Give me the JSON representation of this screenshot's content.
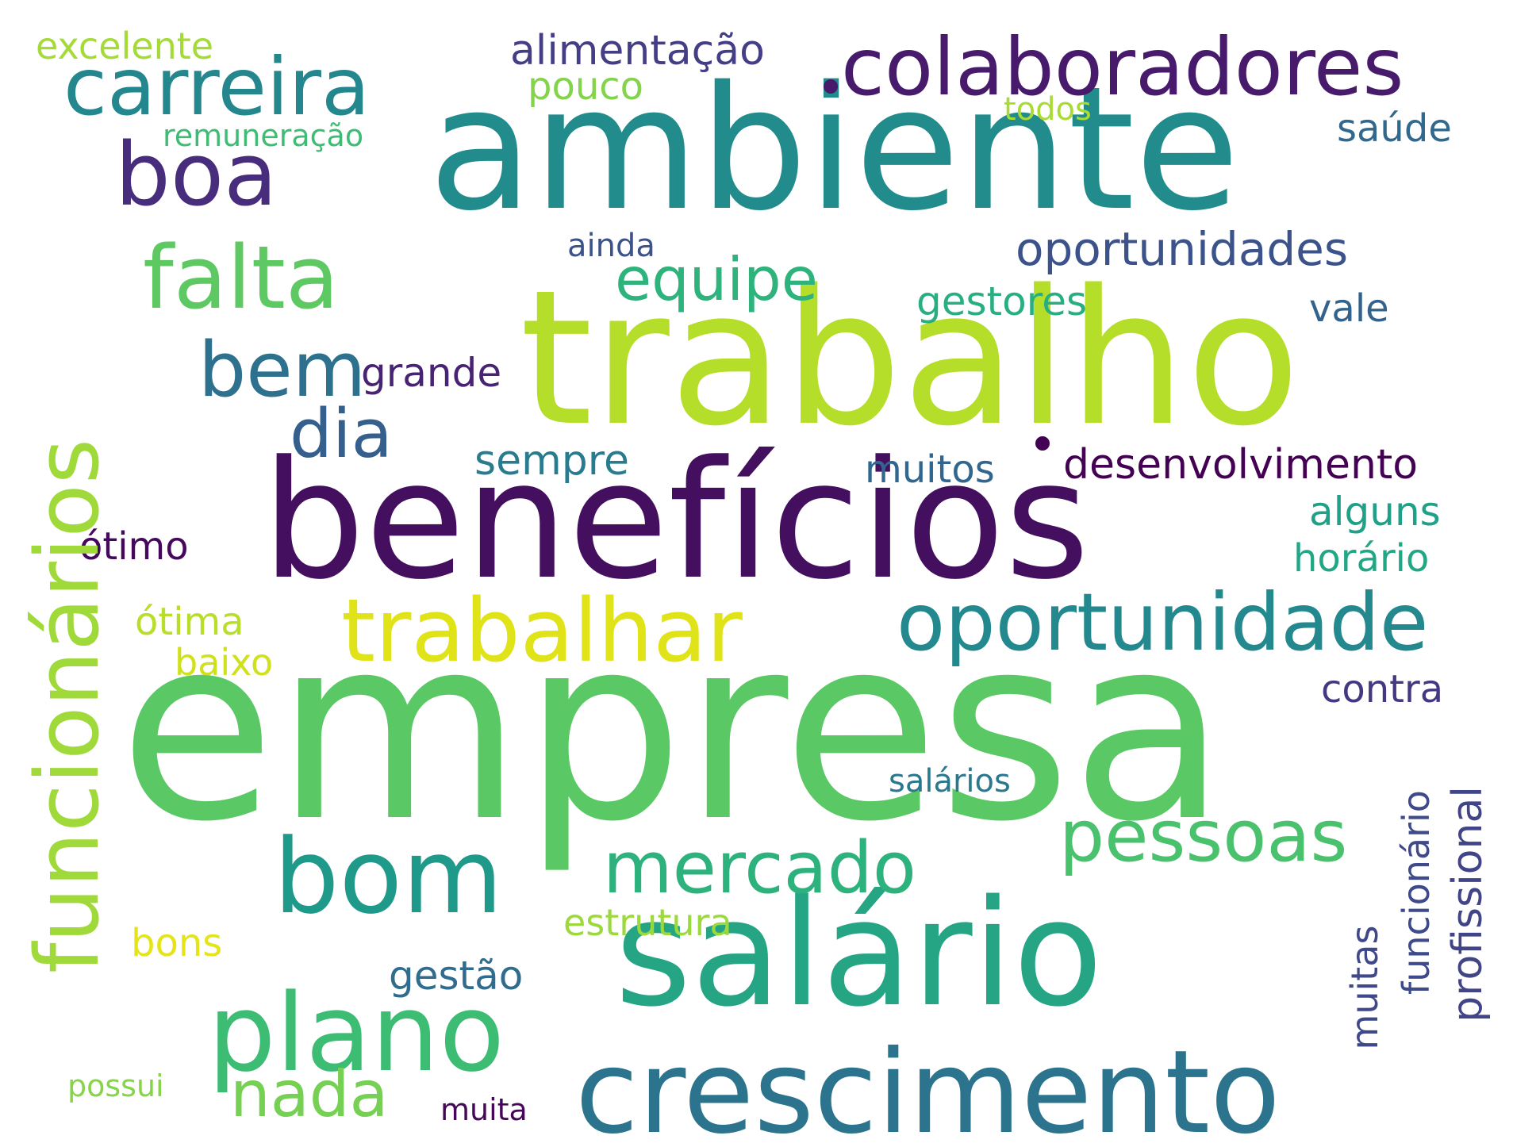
{
  "palette": {
    "background": "#ffffff",
    "colors": [
      "#440154",
      "#482475",
      "#414487",
      "#355f8d",
      "#2a788e",
      "#21918c",
      "#22a884",
      "#44bf70",
      "#7ad151",
      "#bddf26",
      "#fde725"
    ]
  },
  "words": {
    "empresa": {
      "text": "empresa",
      "color": "#5ac864"
    },
    "trabalho": {
      "text": "trabalho",
      "color": "#b5de2b"
    },
    "beneficios": {
      "text": "benefícios",
      "color": "#440f5e"
    },
    "ambiente": {
      "text": "ambiente",
      "color": "#228c8d"
    },
    "salario": {
      "text": "salário",
      "color": "#25a584"
    },
    "crescimento": {
      "text": "crescimento",
      "color": "#2c738e"
    },
    "plano": {
      "text": "plano",
      "color": "#3dbc74"
    },
    "bom": {
      "text": "bom",
      "color": "#1f9a8a"
    },
    "funcionarios": {
      "text": "funcionários",
      "color": "#9fda3a"
    },
    "trabalhar": {
      "text": "trabalhar",
      "color": "#dfe318"
    },
    "oportunidade": {
      "text": "oportunidade",
      "color": "#23898e"
    },
    "colaboradores": {
      "text": "colaboradores",
      "color": "#481a6c"
    },
    "carreira": {
      "text": "carreira",
      "color": "#24878e"
    },
    "boa": {
      "text": "boa",
      "color": "#472d7b"
    },
    "falta": {
      "text": "falta",
      "color": "#5ec962"
    },
    "bem": {
      "text": "bem",
      "color": "#2d718e"
    },
    "dia": {
      "text": "dia",
      "color": "#355f8d"
    },
    "mercado": {
      "text": "mercado",
      "color": "#2db27d"
    },
    "pessoas": {
      "text": "pessoas",
      "color": "#4ac16d"
    },
    "nada": {
      "text": "nada",
      "color": "#75d054"
    },
    "equipe": {
      "text": "equipe",
      "color": "#2eb37c"
    },
    "oportunidades": {
      "text": "oportunidades",
      "color": "#3b528b"
    },
    "desenvolvimento": {
      "text": "desenvolvimento",
      "color": "#440154"
    },
    "alimentacao": {
      "text": "alimentação",
      "color": "#433e85"
    },
    "profissional": {
      "text": "profissional",
      "color": "#414487"
    },
    "funcionario": {
      "text": "funcionário",
      "color": "#3e4a89"
    },
    "excelente": {
      "text": "excelente",
      "color": "#a5db36"
    },
    "pouco": {
      "text": "pouco",
      "color": "#84d44b"
    },
    "remuneracao": {
      "text": "remuneração",
      "color": "#3fbc73"
    },
    "todos": {
      "text": "todos",
      "color": "#a8db34"
    },
    "saude": {
      "text": "saúde",
      "color": "#31688e"
    },
    "ainda": {
      "text": "ainda",
      "color": "#3b528b"
    },
    "gestores": {
      "text": "gestores",
      "color": "#28ae80"
    },
    "vale": {
      "text": "vale",
      "color": "#33638d"
    },
    "grande": {
      "text": "grande",
      "color": "#482374"
    },
    "sempre": {
      "text": "sempre",
      "color": "#297b8e"
    },
    "muitos": {
      "text": "muitos",
      "color": "#31678e"
    },
    "alguns": {
      "text": "alguns",
      "color": "#1fa088"
    },
    "horario": {
      "text": "horário",
      "color": "#22a785"
    },
    "otimo": {
      "text": "ótimo",
      "color": "#46085c"
    },
    "otima": {
      "text": "ótima",
      "color": "#b8de29"
    },
    "baixo": {
      "text": "baixo",
      "color": "#d0e11c"
    },
    "contra": {
      "text": "contra",
      "color": "#453781"
    },
    "saliarios": {
      "text": "salários",
      "color": "#2a788e"
    },
    "muitas": {
      "text": "muitas",
      "color": "#3f4889"
    },
    "estrutura": {
      "text": "estrutura",
      "color": "#9bd93c"
    },
    "bons": {
      "text": "bons",
      "color": "#e5e419"
    },
    "gestao": {
      "text": "gestão",
      "color": "#2f6c8e"
    },
    "possui": {
      "text": "possui",
      "color": "#86d549"
    },
    "muita": {
      "text": "muita",
      "color": "#46075a"
    }
  }
}
